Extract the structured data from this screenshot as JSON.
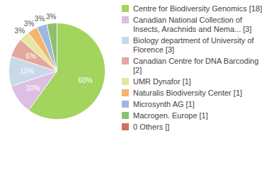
{
  "chart_data": {
    "type": "pie",
    "categories": [
      "Centre for Biodiversity Genomics [18]",
      "Canadian National Collection of Insects, Arachnids and Nema... [3]",
      "Biology department of University of Florence [3]",
      "Canadian Centre for DNA Barcoding [2]",
      "UMR Dynafor [1]",
      "Naturalis Biodiversity Center [1]",
      "Microsynth AG [1]",
      "Macrogen. Europe [1]",
      "0 Others []"
    ],
    "values": [
      60,
      10,
      10,
      6.4,
      3.4,
      3.4,
      3.4,
      3.4,
      0
    ],
    "value_labels": [
      "60%",
      "10%",
      "10%",
      "6%",
      "3%",
      "3%",
      "3%",
      "3%",
      null
    ],
    "colors": [
      "#a2d45e",
      "#dcbfe3",
      "#c9d9e8",
      "#e3a89b",
      "#e6e6a6",
      "#f5b56e",
      "#9db8df",
      "#8fc06f",
      "#d1705f"
    ],
    "data_labels": true,
    "legend": "right"
  }
}
